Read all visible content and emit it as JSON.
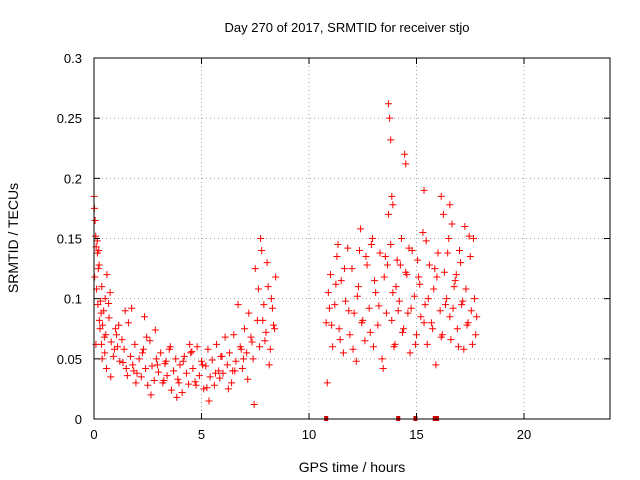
{
  "chart_data": {
    "type": "scatter",
    "title": "Day 270 of 2017, SRMTID for receiver stjo",
    "xlabel": "GPS time / hours",
    "ylabel": "SRMTID / TECUs",
    "xlim": [
      0,
      24
    ],
    "ylim": [
      0,
      0.3
    ],
    "x_ticks": [
      0,
      5,
      10,
      15,
      20
    ],
    "x_tick_labels": [
      "0",
      "5",
      "10",
      "15",
      "20"
    ],
    "y_ticks": [
      0,
      0.05,
      0.1,
      0.15,
      0.2,
      0.25,
      0.3
    ],
    "y_tick_labels": [
      "0",
      "0.05",
      "0.1",
      "0.15",
      "0.2",
      "0.25",
      "0.3"
    ],
    "grid": true,
    "marker": "+",
    "color": "#ff0000",
    "series": [
      {
        "x": [
          0.0,
          0.05,
          0.1,
          0.15,
          0.2,
          0.25,
          0.3,
          0.35,
          0.4,
          0.45,
          0.5,
          0.55,
          0.6,
          0.7,
          0.8,
          0.9,
          1.0,
          1.1,
          1.2,
          1.3,
          1.4,
          1.5,
          1.6,
          1.7,
          1.8,
          1.9,
          2.0,
          2.1,
          2.2,
          2.3,
          2.4,
          2.5,
          2.6,
          2.7,
          2.8,
          2.9,
          3.0,
          3.1,
          3.2,
          3.3,
          3.4,
          3.5,
          3.6,
          3.7,
          3.8,
          3.9,
          4.0,
          4.1,
          4.2,
          4.3,
          4.4,
          4.5,
          4.6,
          4.7,
          4.8,
          4.9,
          5.0,
          5.1,
          5.2,
          5.3,
          5.4,
          5.5,
          5.6,
          5.7,
          5.8,
          5.9,
          6.0,
          6.1,
          6.2,
          6.3,
          6.4,
          6.5,
          6.6,
          6.7,
          6.8,
          6.9,
          7.0,
          7.1,
          7.2,
          7.3,
          7.4,
          7.5,
          7.6,
          7.7,
          7.8,
          7.9,
          8.0,
          8.1,
          8.2,
          8.3,
          8.4,
          0.02,
          0.08,
          0.12,
          0.18,
          0.22,
          0.28,
          0.33,
          0.38,
          0.48,
          0.58,
          0.68,
          0.78,
          0.95,
          1.15,
          1.35,
          1.55,
          1.75,
          1.95,
          2.25,
          2.45,
          2.65,
          2.95,
          3.25,
          3.55,
          3.85,
          4.15,
          4.45,
          4.75,
          5.05,
          5.35,
          5.65,
          5.95,
          6.25,
          6.55,
          6.85,
          7.15,
          7.45,
          7.75,
          7.95,
          8.15,
          8.35,
          0.03,
          0.09,
          0.16,
          0.24,
          0.36,
          0.52,
          0.75,
          1.05,
          1.45,
          1.85,
          2.35,
          2.85,
          3.35,
          3.95,
          4.55,
          5.25,
          5.85,
          6.45,
          6.95,
          7.35,
          7.65,
          7.85,
          8.05,
          8.25,
          8.45
        ],
        "y": [
          0.185,
          0.165,
          0.143,
          0.148,
          0.125,
          0.082,
          0.098,
          0.062,
          0.078,
          0.09,
          0.055,
          0.07,
          0.12,
          0.084,
          0.064,
          0.052,
          0.075,
          0.06,
          0.048,
          0.066,
          0.058,
          0.042,
          0.08,
          0.052,
          0.045,
          0.062,
          0.038,
          0.05,
          0.035,
          0.058,
          0.042,
          0.028,
          0.065,
          0.044,
          0.032,
          0.05,
          0.039,
          0.055,
          0.03,
          0.046,
          0.036,
          0.058,
          0.024,
          0.04,
          0.05,
          0.033,
          0.045,
          0.022,
          0.052,
          0.038,
          0.029,
          0.055,
          0.042,
          0.031,
          0.06,
          0.036,
          0.048,
          0.025,
          0.044,
          0.058,
          0.035,
          0.049,
          0.028,
          0.062,
          0.04,
          0.052,
          0.038,
          0.068,
          0.045,
          0.055,
          0.03,
          0.07,
          0.048,
          0.095,
          0.06,
          0.042,
          0.075,
          0.055,
          0.088,
          0.068,
          0.05,
          0.125,
          0.082,
          0.06,
          0.14,
          0.095,
          0.072,
          0.11,
          0.058,
          0.092,
          0.075,
          0.175,
          0.152,
          0.108,
          0.095,
          0.14,
          0.075,
          0.088,
          0.05,
          0.068,
          0.042,
          0.096,
          0.035,
          0.058,
          0.078,
          0.047,
          0.036,
          0.092,
          0.03,
          0.055,
          0.068,
          0.02,
          0.045,
          0.032,
          0.06,
          0.018,
          0.048,
          0.062,
          0.028,
          0.045,
          0.015,
          0.038,
          0.052,
          0.025,
          0.04,
          0.058,
          0.033,
          0.012,
          0.15,
          0.065,
          0.045,
          0.078,
          0.118,
          0.062,
          0.138,
          0.128,
          0.11,
          0.1,
          0.105,
          0.07,
          0.09,
          0.04,
          0.085,
          0.074,
          0.048,
          0.03,
          0.056,
          0.026,
          0.034,
          0.04,
          0.05,
          0.064,
          0.108,
          0.082,
          0.13,
          0.1,
          0.118
        ]
      },
      {
        "x": [
          10.8,
          10.9,
          11.0,
          11.1,
          11.2,
          11.3,
          11.4,
          11.5,
          11.6,
          11.7,
          11.8,
          11.9,
          12.0,
          12.1,
          12.2,
          12.3,
          12.4,
          12.5,
          12.6,
          12.7,
          12.8,
          12.9,
          13.0,
          13.1,
          13.2,
          13.3,
          13.4,
          13.5,
          13.6,
          13.7,
          13.8,
          13.9,
          14.0,
          14.1,
          14.2,
          14.3,
          14.4,
          14.5,
          14.6,
          14.7,
          14.8,
          14.9,
          15.0,
          15.1,
          15.2,
          15.3,
          15.4,
          15.5,
          15.6,
          15.7,
          15.8,
          15.9,
          16.0,
          16.1,
          16.2,
          16.3,
          16.4,
          16.5,
          16.6,
          16.7,
          16.8,
          16.9,
          17.0,
          17.1,
          17.2,
          17.3,
          17.4,
          17.5,
          17.6,
          17.7,
          17.8,
          10.85,
          10.95,
          11.05,
          11.25,
          11.45,
          11.65,
          11.85,
          12.05,
          12.25,
          12.45,
          12.65,
          12.85,
          13.05,
          13.25,
          13.45,
          13.65,
          13.85,
          13.95,
          14.05,
          14.15,
          14.35,
          14.55,
          14.75,
          14.95,
          15.15,
          15.35,
          15.55,
          15.75,
          15.95,
          16.15,
          16.35,
          16.55,
          16.75,
          16.95,
          17.15,
          17.35,
          17.55,
          17.75,
          13.7,
          13.75,
          13.8,
          13.85,
          13.9,
          14.45,
          14.5,
          15.35,
          16.15,
          16.25,
          16.55,
          16.65,
          17.25,
          17.45,
          11.35,
          12.35,
          12.95,
          13.55,
          14.25,
          14.65,
          15.05,
          15.45,
          15.85,
          16.45,
          16.85,
          17.05,
          17.65
        ],
        "y": [
          0.08,
          0.105,
          0.12,
          0.06,
          0.095,
          0.135,
          0.075,
          0.115,
          0.055,
          0.098,
          0.142,
          0.07,
          0.125,
          0.088,
          0.048,
          0.11,
          0.158,
          0.082,
          0.065,
          0.128,
          0.092,
          0.145,
          0.06,
          0.105,
          0.078,
          0.138,
          0.05,
          0.118,
          0.088,
          0.17,
          0.145,
          0.105,
          0.062,
          0.132,
          0.098,
          0.15,
          0.075,
          0.122,
          0.088,
          0.055,
          0.14,
          0.102,
          0.07,
          0.118,
          0.085,
          0.155,
          0.095,
          0.062,
          0.128,
          0.08,
          0.108,
          0.045,
          0.138,
          0.09,
          0.07,
          0.122,
          0.1,
          0.15,
          0.066,
          0.092,
          0.115,
          0.075,
          0.14,
          0.095,
          0.058,
          0.108,
          0.08,
          0.135,
          0.062,
          0.1,
          0.085,
          0.03,
          0.092,
          0.078,
          0.112,
          0.066,
          0.125,
          0.09,
          0.058,
          0.102,
          0.08,
          0.135,
          0.072,
          0.115,
          0.094,
          0.042,
          0.128,
          0.082,
          0.06,
          0.11,
          0.09,
          0.072,
          0.12,
          0.092,
          0.062,
          0.112,
          0.08,
          0.1,
          0.075,
          0.118,
          0.068,
          0.095,
          0.085,
          0.11,
          0.06,
          0.098,
          0.078,
          0.09,
          0.07,
          0.262,
          0.25,
          0.232,
          0.185,
          0.178,
          0.22,
          0.212,
          0.19,
          0.185,
          0.17,
          0.178,
          0.162,
          0.16,
          0.152,
          0.145,
          0.14,
          0.15,
          0.135,
          0.128,
          0.142,
          0.132,
          0.148,
          0.125,
          0.138,
          0.12,
          0.13,
          0.15
        ]
      }
    ],
    "bottom_markers_x": [
      10.8,
      14.15,
      14.95,
      15.85,
      15.95
    ]
  }
}
